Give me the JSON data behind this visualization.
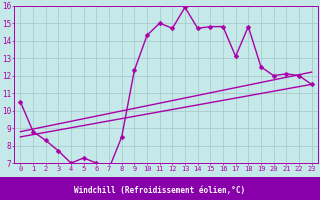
{
  "xlabel": "Windchill (Refroidissement éolien,°C)",
  "bg_color": "#c5e8e8",
  "line_color": "#aa00aa",
  "grid_color": "#aacccc",
  "xlim": [
    -0.5,
    23.5
  ],
  "ylim": [
    7,
    16
  ],
  "xticks": [
    0,
    1,
    2,
    3,
    4,
    5,
    6,
    7,
    8,
    9,
    10,
    11,
    12,
    13,
    14,
    15,
    16,
    17,
    18,
    19,
    20,
    21,
    22,
    23
  ],
  "yticks": [
    7,
    8,
    9,
    10,
    11,
    12,
    13,
    14,
    15,
    16
  ],
  "series1_x": [
    0,
    1,
    2,
    3,
    4,
    5,
    6,
    7,
    8,
    9,
    10,
    11,
    12,
    13,
    14,
    15,
    16,
    17,
    18,
    19,
    20,
    21,
    22,
    23
  ],
  "series1_y": [
    10.5,
    8.8,
    8.3,
    7.7,
    7.0,
    7.3,
    7.0,
    6.7,
    8.5,
    12.3,
    14.3,
    15.0,
    14.7,
    15.9,
    14.7,
    14.8,
    14.8,
    13.1,
    14.8,
    12.5,
    12.0,
    12.1,
    12.0,
    11.5
  ],
  "series2_x": [
    0,
    23
  ],
  "series2_y": [
    8.5,
    11.5
  ],
  "series3_x": [
    0,
    23
  ],
  "series3_y": [
    8.8,
    12.2
  ],
  "marker": "D",
  "marker_size": 2.5,
  "line_width": 1.0,
  "xlabel_bg": "#8800aa",
  "xlabel_fontsize": 5.5,
  "tick_fontsize": 5.0,
  "ytick_fontsize": 5.5
}
